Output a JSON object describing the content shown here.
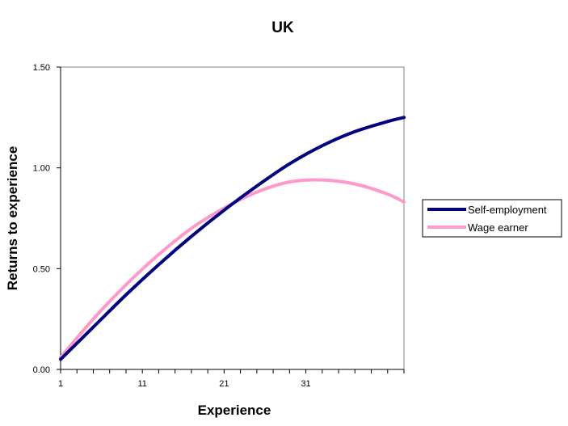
{
  "chart_data": {
    "type": "line",
    "title": "UK",
    "xlabel": "Experience",
    "ylabel": "Returns to experience",
    "xlim": [
      1,
      43
    ],
    "ylim": [
      0,
      1.5
    ],
    "x_ticks": [
      {
        "value": 1,
        "label": "1"
      },
      {
        "value": 11,
        "label": "11"
      },
      {
        "value": 21,
        "label": "21"
      },
      {
        "value": 31,
        "label": "31"
      }
    ],
    "y_ticks": [
      {
        "value": 0,
        "label": "0.00"
      },
      {
        "value": 0.5,
        "label": "0.50"
      },
      {
        "value": 1.0,
        "label": "1.00"
      },
      {
        "value": 1.5,
        "label": "1.50"
      }
    ],
    "grid": false,
    "legend_position": "right",
    "x": [
      1,
      5,
      9,
      13,
      17,
      21,
      25,
      29,
      33,
      37,
      41,
      43
    ],
    "series": [
      {
        "name": "Self-employment",
        "color": "#000080",
        "values": [
          0.05,
          0.21,
          0.37,
          0.52,
          0.66,
          0.79,
          0.91,
          1.02,
          1.11,
          1.18,
          1.23,
          1.25
        ]
      },
      {
        "name": "Wage earner",
        "color": "#FF99CC",
        "values": [
          0.06,
          0.25,
          0.42,
          0.57,
          0.7,
          0.8,
          0.88,
          0.93,
          0.94,
          0.92,
          0.87,
          0.83
        ]
      }
    ]
  }
}
